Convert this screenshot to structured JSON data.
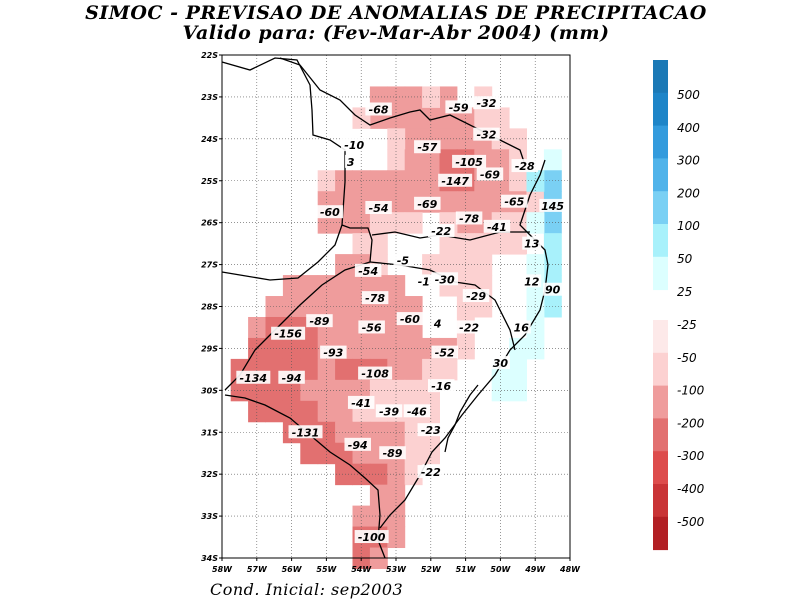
{
  "title_line1": "SIMOC - PREVISAO DE ANOMALIAS DE PRECIPITACAO",
  "title_line2": "Valido para: (Fev-Mar-Abr 2004) (mm)",
  "footer": "Cond. Inicial: sep2003",
  "map_extent": {
    "lon_min": -58,
    "lon_max": -48,
    "lat_min": -34,
    "lat_max": -22
  },
  "axes": {
    "lat_labels": [
      "22S",
      "23S",
      "24S",
      "25S",
      "26S",
      "27S",
      "28S",
      "29S",
      "30S",
      "31S",
      "32S",
      "33S",
      "34S"
    ],
    "lon_labels": [
      "58W",
      "57W",
      "56W",
      "55W",
      "54W",
      "53W",
      "52W",
      "51W",
      "50W",
      "49W",
      "48W"
    ]
  },
  "colors": {
    "n500": "#b21f24",
    "n400": "#c93436",
    "n300": "#dd4c4c",
    "n200": "#e27070",
    "n100": "#ef9c9c",
    "n50": "#fcd1d1",
    "n25": "#fde9e9",
    "p25": "#dcffff",
    "p50": "#a8f1fb",
    "p100": "#7ad0f4",
    "p200": "#50b3ea",
    "p300": "#339bdd",
    "p400": "#1e85c8",
    "p500": "#1b79b6",
    "border": "#000000"
  },
  "legend_pos": [
    "500",
    "400",
    "300",
    "200",
    "100",
    "50",
    "25"
  ],
  "legend_neg": [
    "-25",
    "-50",
    "-100",
    "-200",
    "-300",
    "-400",
    "-500"
  ],
  "labels": [
    {
      "t": "-68",
      "lon": -53.5,
      "lat": -23.3
    },
    {
      "t": "-59",
      "lon": -51.2,
      "lat": -23.25
    },
    {
      "t": "-32",
      "lon": -50.4,
      "lat": -23.15
    },
    {
      "t": "-32",
      "lon": -50.4,
      "lat": -23.9
    },
    {
      "t": "-10",
      "lon": -54.2,
      "lat": -24.15
    },
    {
      "t": "3",
      "lon": -54.3,
      "lat": -24.55
    },
    {
      "t": "-57",
      "lon": -52.1,
      "lat": -24.2
    },
    {
      "t": "-105",
      "lon": -50.9,
      "lat": -24.55
    },
    {
      "t": "-28",
      "lon": -49.3,
      "lat": -24.65
    },
    {
      "t": "-69",
      "lon": -50.3,
      "lat": -24.85
    },
    {
      "t": "-147",
      "lon": -51.3,
      "lat": -25.0
    },
    {
      "t": "-60",
      "lon": -54.9,
      "lat": -25.75
    },
    {
      "t": "-54",
      "lon": -53.5,
      "lat": -25.65
    },
    {
      "t": "-69",
      "lon": -52.1,
      "lat": -25.55
    },
    {
      "t": "-65",
      "lon": -49.6,
      "lat": -25.5
    },
    {
      "t": "145",
      "lon": -48.5,
      "lat": -25.6
    },
    {
      "t": "-78",
      "lon": -50.9,
      "lat": -25.9
    },
    {
      "t": "-41",
      "lon": -50.1,
      "lat": -26.1
    },
    {
      "t": "-22",
      "lon": -51.7,
      "lat": -26.2
    },
    {
      "t": "13",
      "lon": -49.1,
      "lat": -26.5
    },
    {
      "t": "-5",
      "lon": -52.8,
      "lat": -26.9
    },
    {
      "t": "-54",
      "lon": -53.8,
      "lat": -27.15
    },
    {
      "t": "-1",
      "lon": -52.2,
      "lat": -27.4
    },
    {
      "t": "-30",
      "lon": -51.6,
      "lat": -27.35
    },
    {
      "t": "12",
      "lon": -49.1,
      "lat": -27.4
    },
    {
      "t": "90",
      "lon": -48.5,
      "lat": -27.6
    },
    {
      "t": "-29",
      "lon": -50.7,
      "lat": -27.75
    },
    {
      "t": "-78",
      "lon": -53.6,
      "lat": -27.8
    },
    {
      "t": "-89",
      "lon": -55.2,
      "lat": -28.35
    },
    {
      "t": "-56",
      "lon": -53.7,
      "lat": -28.5
    },
    {
      "t": "-60",
      "lon": -52.6,
      "lat": -28.3
    },
    {
      "t": "4",
      "lon": -51.8,
      "lat": -28.4
    },
    {
      "t": "-22",
      "lon": -50.9,
      "lat": -28.5
    },
    {
      "t": "16",
      "lon": -49.4,
      "lat": -28.5
    },
    {
      "t": "-156",
      "lon": -56.1,
      "lat": -28.65
    },
    {
      "t": "-93",
      "lon": -54.8,
      "lat": -29.1
    },
    {
      "t": "-52",
      "lon": -51.6,
      "lat": -29.1
    },
    {
      "t": "30",
      "lon": -50.0,
      "lat": -29.35
    },
    {
      "t": "-108",
      "lon": -53.6,
      "lat": -29.6
    },
    {
      "t": "-134",
      "lon": -57.1,
      "lat": -29.7
    },
    {
      "t": "-94",
      "lon": -56.0,
      "lat": -29.7
    },
    {
      "t": "-16",
      "lon": -51.7,
      "lat": -29.9
    },
    {
      "t": "-41",
      "lon": -54.0,
      "lat": -30.3
    },
    {
      "t": "-39",
      "lon": -53.2,
      "lat": -30.5
    },
    {
      "t": "-46",
      "lon": -52.4,
      "lat": -30.5
    },
    {
      "t": "-23",
      "lon": -52.0,
      "lat": -30.95
    },
    {
      "t": "-131",
      "lon": -55.6,
      "lat": -31.0
    },
    {
      "t": "-94",
      "lon": -54.1,
      "lat": -31.3
    },
    {
      "t": "-89",
      "lon": -53.1,
      "lat": -31.5
    },
    {
      "t": "-22",
      "lon": -52.0,
      "lat": -31.95
    },
    {
      "t": "-100",
      "lon": -53.7,
      "lat": -33.5
    }
  ],
  "field_cells": [
    {
      "lon": -51.5,
      "lat": -23.0,
      "v": -55
    },
    {
      "lon": -51.5,
      "lat": -23.5,
      "v": -65
    },
    {
      "lon": -51.0,
      "lat": -23.5,
      "v": -60
    },
    {
      "lon": -50.5,
      "lat": -23.0,
      "v": -35
    },
    {
      "lon": -50.5,
      "lat": -23.5,
      "v": -40
    },
    {
      "lon": -50.0,
      "lat": -23.5,
      "v": -30
    },
    {
      "lon": -53.5,
      "lat": -23.0,
      "v": -55
    },
    {
      "lon": -53.0,
      "lat": -23.0,
      "v": -60
    },
    {
      "lon": -52.5,
      "lat": -23.0,
      "v": -55
    },
    {
      "lon": -53.5,
      "lat": -23.5,
      "v": -65
    },
    {
      "lon": -53.0,
      "lat": -23.5,
      "v": -70
    },
    {
      "lon": -52.5,
      "lat": -23.5,
      "v": -65
    },
    {
      "lon": -52.0,
      "lat": -23.5,
      "v": -55
    },
    {
      "lon": -52.0,
      "lat": -23.0,
      "v": -40
    },
    {
      "lon": -54.0,
      "lat": -23.5,
      "v": -45
    },
    {
      "lon": -52.5,
      "lat": -24.0,
      "v": -55
    },
    {
      "lon": -52.0,
      "lat": -24.0,
      "v": -58
    },
    {
      "lon": -51.5,
      "lat": -24.0,
      "v": -60
    },
    {
      "lon": -51.0,
      "lat": -24.0,
      "v": -70
    },
    {
      "lon": -50.5,
      "lat": -24.0,
      "v": -55
    },
    {
      "lon": -50.0,
      "lat": -24.0,
      "v": -35
    },
    {
      "lon": -49.5,
      "lat": -24.0,
      "v": -28
    },
    {
      "lon": -53.0,
      "lat": -24.0,
      "v": -40
    },
    {
      "lon": -53.0,
      "lat": -24.5,
      "v": -45
    },
    {
      "lon": -52.5,
      "lat": -24.5,
      "v": -60
    },
    {
      "lon": -52.0,
      "lat": -24.5,
      "v": -70
    },
    {
      "lon": -51.5,
      "lat": -24.5,
      "v": -110
    },
    {
      "lon": -51.0,
      "lat": -24.5,
      "v": -120
    },
    {
      "lon": -50.5,
      "lat": -24.5,
      "v": -90
    },
    {
      "lon": -50.0,
      "lat": -24.5,
      "v": -60
    },
    {
      "lon": -49.5,
      "lat": -24.5,
      "v": -30
    },
    {
      "lon": -55.0,
      "lat": -25.0,
      "v": -40
    },
    {
      "lon": -54.5,
      "lat": -25.0,
      "v": -50
    },
    {
      "lon": -54.0,
      "lat": -25.0,
      "v": -50
    },
    {
      "lon": -53.5,
      "lat": -25.0,
      "v": -55
    },
    {
      "lon": -53.0,
      "lat": -25.0,
      "v": -60
    },
    {
      "lon": -52.5,
      "lat": -25.0,
      "v": -75
    },
    {
      "lon": -52.0,
      "lat": -25.0,
      "v": -90
    },
    {
      "lon": -51.5,
      "lat": -25.0,
      "v": -150
    },
    {
      "lon": -51.0,
      "lat": -25.0,
      "v": -160
    },
    {
      "lon": -50.5,
      "lat": -25.0,
      "v": -90
    },
    {
      "lon": -50.0,
      "lat": -25.0,
      "v": -70
    },
    {
      "lon": -49.5,
      "lat": -25.0,
      "v": -45
    },
    {
      "lon": -49.0,
      "lat": -25.0,
      "v": -30
    },
    {
      "lon": -55.0,
      "lat": -25.5,
      "v": -65
    },
    {
      "lon": -54.5,
      "lat": -25.5,
      "v": -65
    },
    {
      "lon": -54.0,
      "lat": -25.5,
      "v": -60
    },
    {
      "lon": -53.5,
      "lat": -25.5,
      "v": -58
    },
    {
      "lon": -53.0,
      "lat": -25.5,
      "v": -60
    },
    {
      "lon": -52.5,
      "lat": -25.5,
      "v": -70
    },
    {
      "lon": -52.0,
      "lat": -25.5,
      "v": -75
    },
    {
      "lon": -51.5,
      "lat": -25.5,
      "v": -80
    },
    {
      "lon": -51.0,
      "lat": -25.5,
      "v": -85
    },
    {
      "lon": -50.5,
      "lat": -25.5,
      "v": -75
    },
    {
      "lon": -50.0,
      "lat": -25.5,
      "v": -70
    },
    {
      "lon": -49.5,
      "lat": -25.5,
      "v": -60
    },
    {
      "lon": -49.0,
      "lat": -25.5,
      "v": -30
    },
    {
      "lon": -55.0,
      "lat": -26.0,
      "v": -60
    },
    {
      "lon": -54.5,
      "lat": -26.0,
      "v": -55
    },
    {
      "lon": -54.0,
      "lat": -26.0,
      "v": -55
    },
    {
      "lon": -53.5,
      "lat": -26.0,
      "v": -45
    },
    {
      "lon": -53.0,
      "lat": -26.0,
      "v": -35
    },
    {
      "lon": -52.5,
      "lat": -26.0,
      "v": -28
    },
    {
      "lon": -51.0,
      "lat": -26.0,
      "v": -75
    },
    {
      "lon": -50.5,
      "lat": -26.0,
      "v": -60
    },
    {
      "lon": -50.0,
      "lat": -26.0,
      "v": -45
    },
    {
      "lon": -49.5,
      "lat": -26.0,
      "v": -30
    },
    {
      "lon": -51.5,
      "lat": -26.0,
      "v": -30
    },
    {
      "lon": -51.5,
      "lat": -26.5,
      "v": -28
    },
    {
      "lon": -51.0,
      "lat": -26.5,
      "v": -30
    },
    {
      "lon": -50.5,
      "lat": -26.5,
      "v": -35
    },
    {
      "lon": -50.0,
      "lat": -26.5,
      "v": -30
    },
    {
      "lon": -49.5,
      "lat": -26.5,
      "v": -25
    },
    {
      "lon": -54.0,
      "lat": -26.5,
      "v": -40
    },
    {
      "lon": -53.5,
      "lat": -26.5,
      "v": -30
    },
    {
      "lon": -54.5,
      "lat": -27.0,
      "v": -50
    },
    {
      "lon": -54.0,
      "lat": -27.0,
      "v": -55
    },
    {
      "lon": -53.5,
      "lat": -27.0,
      "v": -45
    },
    {
      "lon": -52.0,
      "lat": -27.0,
      "v": -28
    },
    {
      "lon": -51.5,
      "lat": -27.0,
      "v": -30
    },
    {
      "lon": -51.0,
      "lat": -27.0,
      "v": -30
    },
    {
      "lon": -50.5,
      "lat": -27.0,
      "v": -28
    },
    {
      "lon": -56.0,
      "lat": -27.5,
      "v": -60
    },
    {
      "lon": -55.5,
      "lat": -27.5,
      "v": -70
    },
    {
      "lon": -55.0,
      "lat": -27.5,
      "v": -70
    },
    {
      "lon": -54.5,
      "lat": -27.5,
      "v": -70
    },
    {
      "lon": -54.0,
      "lat": -27.5,
      "v": -75
    },
    {
      "lon": -53.5,
      "lat": -27.5,
      "v": -70
    },
    {
      "lon": -53.0,
      "lat": -27.5,
      "v": -55
    },
    {
      "lon": -51.5,
      "lat": -27.5,
      "v": -30
    },
    {
      "lon": -51.0,
      "lat": -27.5,
      "v": -30
    },
    {
      "lon": -50.5,
      "lat": -27.5,
      "v": -28
    },
    {
      "lon": -56.5,
      "lat": -28.0,
      "v": -70
    },
    {
      "lon": -56.0,
      "lat": -28.0,
      "v": -80
    },
    {
      "lon": -55.5,
      "lat": -28.0,
      "v": -90
    },
    {
      "lon": -55.0,
      "lat": -28.0,
      "v": -85
    },
    {
      "lon": -54.5,
      "lat": -28.0,
      "v": -75
    },
    {
      "lon": -54.0,
      "lat": -28.0,
      "v": -78
    },
    {
      "lon": -53.5,
      "lat": -28.0,
      "v": -75
    },
    {
      "lon": -53.0,
      "lat": -28.0,
      "v": -65
    },
    {
      "lon": -52.5,
      "lat": -28.0,
      "v": -60
    },
    {
      "lon": -51.0,
      "lat": -28.0,
      "v": -28
    },
    {
      "lon": -50.5,
      "lat": -28.0,
      "v": -28
    },
    {
      "lon": -57.0,
      "lat": -28.5,
      "v": -80
    },
    {
      "lon": -56.5,
      "lat": -28.5,
      "v": -130
    },
    {
      "lon": -56.0,
      "lat": -28.5,
      "v": -150
    },
    {
      "lon": -55.5,
      "lat": -28.5,
      "v": -120
    },
    {
      "lon": -55.0,
      "lat": -28.5,
      "v": -90
    },
    {
      "lon": -54.5,
      "lat": -28.5,
      "v": -70
    },
    {
      "lon": -54.0,
      "lat": -28.5,
      "v": -60
    },
    {
      "lon": -53.5,
      "lat": -28.5,
      "v": -58
    },
    {
      "lon": -53.0,
      "lat": -28.5,
      "v": -60
    },
    {
      "lon": -52.5,
      "lat": -28.5,
      "v": -60
    },
    {
      "lon": -51.0,
      "lat": -28.5,
      "v": -28
    },
    {
      "lon": -57.0,
      "lat": -29.0,
      "v": -110
    },
    {
      "lon": -56.5,
      "lat": -29.0,
      "v": -150
    },
    {
      "lon": -56.0,
      "lat": -29.0,
      "v": -130
    },
    {
      "lon": -55.5,
      "lat": -29.0,
      "v": -110
    },
    {
      "lon": -55.0,
      "lat": -29.0,
      "v": -95
    },
    {
      "lon": -54.5,
      "lat": -29.0,
      "v": -90
    },
    {
      "lon": -54.0,
      "lat": -29.0,
      "v": -75
    },
    {
      "lon": -53.5,
      "lat": -29.0,
      "v": -70
    },
    {
      "lon": -53.0,
      "lat": -29.0,
      "v": -60
    },
    {
      "lon": -52.5,
      "lat": -29.0,
      "v": -55
    },
    {
      "lon": -52.0,
      "lat": -29.0,
      "v": -55
    },
    {
      "lon": -51.5,
      "lat": -29.0,
      "v": -50
    },
    {
      "lon": -51.0,
      "lat": -29.0,
      "v": -35
    },
    {
      "lon": -57.5,
      "lat": -29.5,
      "v": -120
    },
    {
      "lon": -57.0,
      "lat": -29.5,
      "v": -140
    },
    {
      "lon": -56.5,
      "lat": -29.5,
      "v": -130
    },
    {
      "lon": -56.0,
      "lat": -29.5,
      "v": -110
    },
    {
      "lon": -55.5,
      "lat": -29.5,
      "v": -100
    },
    {
      "lon": -55.0,
      "lat": -29.5,
      "v": -95
    },
    {
      "lon": -54.5,
      "lat": -29.5,
      "v": -105
    },
    {
      "lon": -54.0,
      "lat": -29.5,
      "v": -110
    },
    {
      "lon": -53.5,
      "lat": -29.5,
      "v": -105
    },
    {
      "lon": -53.0,
      "lat": -29.5,
      "v": -70
    },
    {
      "lon": -52.5,
      "lat": -29.5,
      "v": -55
    },
    {
      "lon": -52.0,
      "lat": -29.5,
      "v": -40
    },
    {
      "lon": -51.5,
      "lat": -29.5,
      "v": -30
    },
    {
      "lon": -57.5,
      "lat": -30.0,
      "v": -130
    },
    {
      "lon": -57.0,
      "lat": -30.0,
      "v": -140
    },
    {
      "lon": -56.5,
      "lat": -30.0,
      "v": -120
    },
    {
      "lon": -56.0,
      "lat": -30.0,
      "v": -100
    },
    {
      "lon": -55.5,
      "lat": -30.0,
      "v": -95
    },
    {
      "lon": -55.0,
      "lat": -30.0,
      "v": -90
    },
    {
      "lon": -54.5,
      "lat": -30.0,
      "v": -80
    },
    {
      "lon": -54.0,
      "lat": -30.0,
      "v": -60
    },
    {
      "lon": -53.5,
      "lat": -30.0,
      "v": -45
    },
    {
      "lon": -53.0,
      "lat": -30.0,
      "v": -42
    },
    {
      "lon": -52.5,
      "lat": -30.0,
      "v": -40
    },
    {
      "lon": -52.0,
      "lat": -30.0,
      "v": -25
    },
    {
      "lon": -57.0,
      "lat": -30.5,
      "v": -110
    },
    {
      "lon": -56.5,
      "lat": -30.5,
      "v": -115
    },
    {
      "lon": -56.0,
      "lat": -30.5,
      "v": -120
    },
    {
      "lon": -55.5,
      "lat": -30.5,
      "v": -110
    },
    {
      "lon": -55.0,
      "lat": -30.5,
      "v": -90
    },
    {
      "lon": -54.5,
      "lat": -30.5,
      "v": -70
    },
    {
      "lon": -54.0,
      "lat": -30.5,
      "v": -45
    },
    {
      "lon": -53.5,
      "lat": -30.5,
      "v": -40
    },
    {
      "lon": -53.0,
      "lat": -30.5,
      "v": -40
    },
    {
      "lon": -52.5,
      "lat": -30.5,
      "v": -45
    },
    {
      "lon": -52.0,
      "lat": -30.5,
      "v": -30
    },
    {
      "lon": -56.0,
      "lat": -31.0,
      "v": -120
    },
    {
      "lon": -55.5,
      "lat": -31.0,
      "v": -130
    },
    {
      "lon": -55.0,
      "lat": -31.0,
      "v": -110
    },
    {
      "lon": -54.5,
      "lat": -31.0,
      "v": -95
    },
    {
      "lon": -54.0,
      "lat": -31.0,
      "v": -80
    },
    {
      "lon": -53.5,
      "lat": -31.0,
      "v": -60
    },
    {
      "lon": -53.0,
      "lat": -31.0,
      "v": -50
    },
    {
      "lon": -52.5,
      "lat": -31.0,
      "v": -35
    },
    {
      "lon": -52.0,
      "lat": -31.0,
      "v": -25
    },
    {
      "lon": -55.5,
      "lat": -31.5,
      "v": -105
    },
    {
      "lon": -55.0,
      "lat": -31.5,
      "v": -110
    },
    {
      "lon": -54.5,
      "lat": -31.5,
      "v": -100
    },
    {
      "lon": -54.0,
      "lat": -31.5,
      "v": -95
    },
    {
      "lon": -53.5,
      "lat": -31.5,
      "v": -90
    },
    {
      "lon": -53.0,
      "lat": -31.5,
      "v": -80
    },
    {
      "lon": -52.5,
      "lat": -31.5,
      "v": -40
    },
    {
      "lon": -52.0,
      "lat": -31.5,
      "v": -28
    },
    {
      "lon": -54.5,
      "lat": -32.0,
      "v": -105
    },
    {
      "lon": -54.0,
      "lat": -32.0,
      "v": -110
    },
    {
      "lon": -53.5,
      "lat": -32.0,
      "v": -100
    },
    {
      "lon": -53.0,
      "lat": -32.0,
      "v": -80
    },
    {
      "lon": -52.5,
      "lat": -32.0,
      "v": -40
    },
    {
      "lon": -53.5,
      "lat": -32.5,
      "v": -90
    },
    {
      "lon": -53.0,
      "lat": -32.5,
      "v": -70
    },
    {
      "lon": -54.0,
      "lat": -33.0,
      "v": -90
    },
    {
      "lon": -53.5,
      "lat": -33.0,
      "v": -80
    },
    {
      "lon": -53.0,
      "lat": -33.0,
      "v": -60
    },
    {
      "lon": -54.0,
      "lat": -33.5,
      "v": -110
    },
    {
      "lon": -53.5,
      "lat": -33.5,
      "v": -105
    },
    {
      "lon": -53.0,
      "lat": -33.5,
      "v": -95
    },
    {
      "lon": -54.0,
      "lat": -34.0,
      "v": -100
    },
    {
      "lon": -53.5,
      "lat": -34.0,
      "v": -95
    },
    {
      "lon": -48.5,
      "lat": -24.5,
      "v": 40
    },
    {
      "lon": -48.5,
      "lat": -25.0,
      "v": 160
    },
    {
      "lon": -48.5,
      "lat": -25.5,
      "v": 150
    },
    {
      "lon": -49.0,
      "lat": -25.0,
      "v": 60
    },
    {
      "lon": -48.5,
      "lat": -26.0,
      "v": 130
    },
    {
      "lon": -49.0,
      "lat": -26.0,
      "v": 40
    },
    {
      "lon": -48.5,
      "lat": -26.5,
      "v": 60
    },
    {
      "lon": -49.0,
      "lat": -26.5,
      "v": 20
    },
    {
      "lon": -48.5,
      "lat": -27.0,
      "v": 60
    },
    {
      "lon": -49.0,
      "lat": -27.0,
      "v": 30
    },
    {
      "lon": -48.5,
      "lat": -27.5,
      "v": 90
    },
    {
      "lon": -49.0,
      "lat": -27.5,
      "v": 40
    },
    {
      "lon": -48.5,
      "lat": -28.0,
      "v": 80
    },
    {
      "lon": -49.0,
      "lat": -28.0,
      "v": 45
    },
    {
      "lon": -49.0,
      "lat": -28.5,
      "v": 30
    },
    {
      "lon": -49.5,
      "lat": -28.5,
      "v": 20
    },
    {
      "lon": -49.0,
      "lat": -29.0,
      "v": 30
    },
    {
      "lon": -49.5,
      "lat": -29.0,
      "v": 30
    },
    {
      "lon": -49.5,
      "lat": -29.5,
      "v": 30
    },
    {
      "lon": -50.0,
      "lat": -29.5,
      "v": 30
    },
    {
      "lon": -49.5,
      "lat": -30.0,
      "v": 25
    },
    {
      "lon": -50.0,
      "lat": -30.0,
      "v": 25
    }
  ]
}
